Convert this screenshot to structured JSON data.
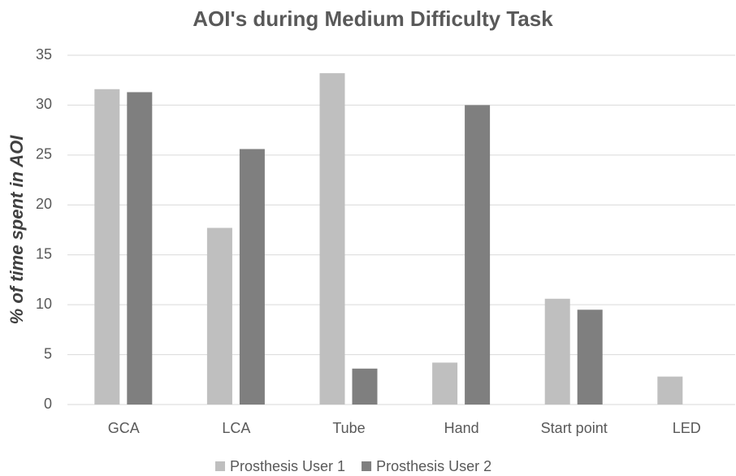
{
  "chart_data": {
    "type": "bar",
    "title": "AOI's during Medium Difficulty Task",
    "y_label": "% of time spent in AOI",
    "categories": [
      "GCA",
      "LCA",
      "Tube",
      "Hand",
      "Start point",
      "LED"
    ],
    "series": [
      {
        "name": "Prosthesis User 1",
        "color": "#bfbfbf",
        "values": [
          31.6,
          17.7,
          33.2,
          4.2,
          10.6,
          2.8
        ]
      },
      {
        "name": "Prosthesis User 2",
        "color": "#7f7f7f",
        "values": [
          31.3,
          25.6,
          3.6,
          30.0,
          9.5,
          0
        ]
      }
    ],
    "ylim": [
      0,
      35
    ],
    "yticks": [
      0,
      5,
      10,
      15,
      20,
      25,
      30,
      35
    ],
    "grid": true,
    "legend": "bottom"
  }
}
